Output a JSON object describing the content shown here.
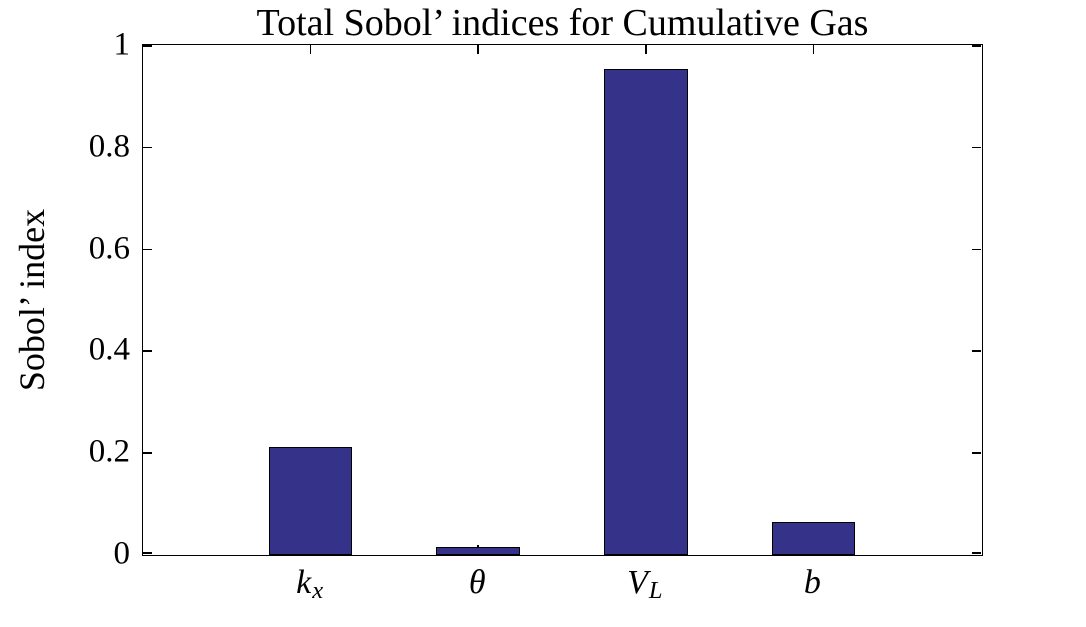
{
  "chart_data": {
    "type": "bar",
    "title": "Total Sobol’ indices for Cumulative Gas",
    "ylabel": "Sobol’ index",
    "xlabel": "",
    "categories": [
      "k_x",
      "θ",
      "V_L",
      "b"
    ],
    "categories_display": [
      {
        "base": "k",
        "sub": "x"
      },
      {
        "base": "θ",
        "sub": ""
      },
      {
        "base": "V",
        "sub": "L"
      },
      {
        "base": "b",
        "sub": ""
      }
    ],
    "values": [
      0.213,
      0.016,
      0.954,
      0.064
    ],
    "ylim": [
      0,
      1
    ],
    "yticks": [
      0,
      0.2,
      0.4,
      0.6,
      0.8,
      1
    ],
    "ytick_labels": [
      "0",
      "0.2",
      "0.4",
      "0.6",
      "0.8",
      "1"
    ],
    "grid": false,
    "legend": "none",
    "tick_direction": "in",
    "box": true,
    "bar_width_fraction": 0.5,
    "bar_color": "#343389",
    "bar_edge_color": "#000000",
    "axis_color": "#000000",
    "background_color": "#ffffff"
  }
}
